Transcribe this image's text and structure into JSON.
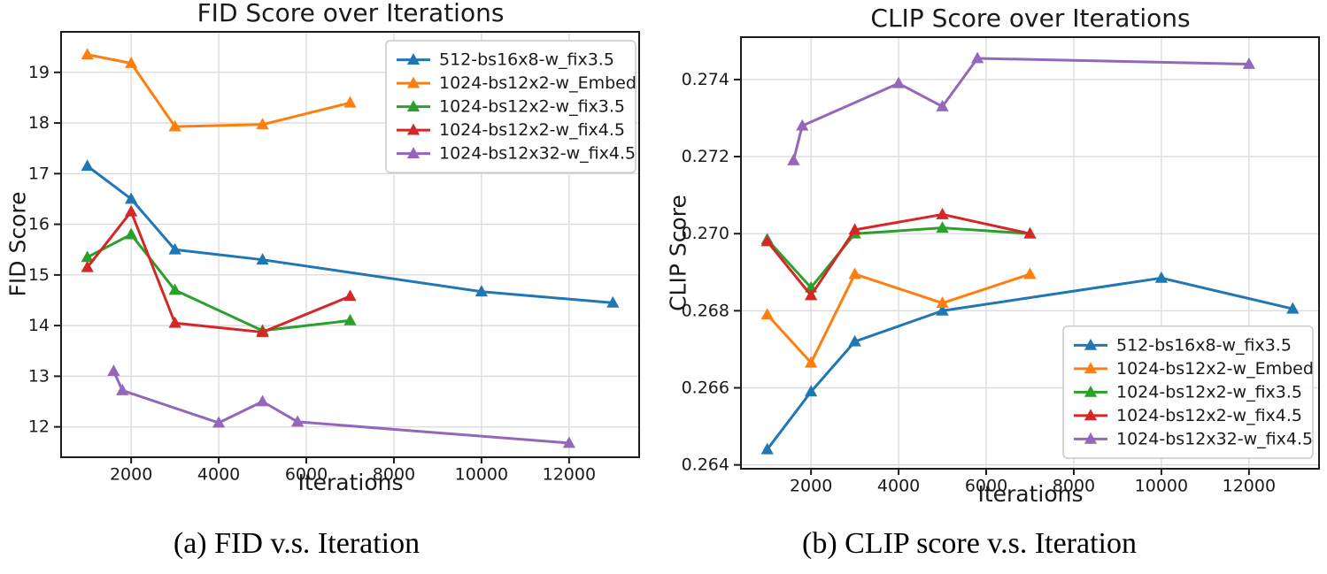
{
  "figure": {
    "captions": {
      "a": "(a) FID v.s. Iteration",
      "b": "(b) CLIP score v.s. Iteration"
    }
  },
  "chart_data": [
    {
      "id": "fid",
      "type": "line",
      "title": "FID Score over Iterations",
      "xlabel": "Iterations",
      "ylabel": "FID Score",
      "xlim": [
        400,
        13600
      ],
      "ylim": [
        11.4,
        19.8
      ],
      "xticks": [
        2000,
        4000,
        6000,
        8000,
        10000,
        12000
      ],
      "yticks": [
        12,
        13,
        14,
        15,
        16,
        17,
        18,
        19
      ],
      "ytick_decimals": 0,
      "grid": true,
      "legend_position": "upper right",
      "series": [
        {
          "name": "512-bs16x8-w_fix3.5",
          "color": "#1f77b4",
          "marker": "triangle-up",
          "x": [
            1000,
            2000,
            3000,
            5000,
            10000,
            13000
          ],
          "y": [
            17.15,
            16.5,
            15.5,
            15.3,
            14.67,
            14.45
          ]
        },
        {
          "name": "1024-bs12x2-w_Embed",
          "color": "#ff7f0e",
          "marker": "triangle-up",
          "x": [
            1000,
            2000,
            3000,
            5000,
            7000
          ],
          "y": [
            19.35,
            19.18,
            17.93,
            17.97,
            18.4
          ]
        },
        {
          "name": "1024-bs12x2-w_fix3.5",
          "color": "#2ca02c",
          "marker": "triangle-up",
          "x": [
            1000,
            2000,
            3000,
            5000,
            7000
          ],
          "y": [
            15.35,
            15.8,
            14.7,
            13.9,
            14.1
          ]
        },
        {
          "name": "1024-bs12x2-w_fix4.5",
          "color": "#d62728",
          "marker": "triangle-up",
          "x": [
            1000,
            2000,
            3000,
            5000,
            7000
          ],
          "y": [
            15.15,
            16.25,
            14.05,
            13.87,
            14.58
          ]
        },
        {
          "name": "1024-bs12x32-w_fix4.5",
          "color": "#9467bd",
          "marker": "triangle-up",
          "x": [
            1600,
            1800,
            4000,
            5000,
            5800,
            12000
          ],
          "y": [
            13.1,
            12.72,
            12.08,
            12.5,
            12.1,
            11.68
          ]
        }
      ]
    },
    {
      "id": "clip",
      "type": "line",
      "title": "CLIP Score over Iterations",
      "xlabel": "Iterations",
      "ylabel": "CLIP Score",
      "xlim": [
        400,
        13600
      ],
      "ylim": [
        0.2639,
        0.2751
      ],
      "xticks": [
        2000,
        4000,
        6000,
        8000,
        10000,
        12000
      ],
      "yticks": [
        0.264,
        0.266,
        0.268,
        0.27,
        0.272,
        0.274
      ],
      "ytick_decimals": 3,
      "grid": true,
      "legend_position": "lower right",
      "series": [
        {
          "name": "512-bs16x8-w_fix3.5",
          "color": "#1f77b4",
          "marker": "triangle-up",
          "x": [
            1000,
            2000,
            3000,
            5000,
            10000,
            13000
          ],
          "y": [
            0.2644,
            0.2659,
            0.2672,
            0.268,
            0.26885,
            0.26805
          ]
        },
        {
          "name": "1024-bs12x2-w_Embed",
          "color": "#ff7f0e",
          "marker": "triangle-up",
          "x": [
            1000,
            2000,
            3000,
            5000,
            7000
          ],
          "y": [
            0.2679,
            0.26665,
            0.26895,
            0.2682,
            0.26895
          ]
        },
        {
          "name": "1024-bs12x2-w_fix3.5",
          "color": "#2ca02c",
          "marker": "triangle-up",
          "x": [
            1000,
            2000,
            3000,
            5000,
            7000
          ],
          "y": [
            0.26985,
            0.2686,
            0.27,
            0.27015,
            0.27
          ]
        },
        {
          "name": "1024-bs12x2-w_fix4.5",
          "color": "#d62728",
          "marker": "triangle-up",
          "x": [
            1000,
            2000,
            3000,
            5000,
            7000
          ],
          "y": [
            0.2698,
            0.2684,
            0.2701,
            0.2705,
            0.27
          ]
        },
        {
          "name": "1024-bs12x32-w_fix4.5",
          "color": "#9467bd",
          "marker": "triangle-up",
          "x": [
            1600,
            1800,
            4000,
            5000,
            5800,
            12000
          ],
          "y": [
            0.2719,
            0.2728,
            0.2739,
            0.2733,
            0.27455,
            0.2744
          ]
        }
      ]
    }
  ]
}
